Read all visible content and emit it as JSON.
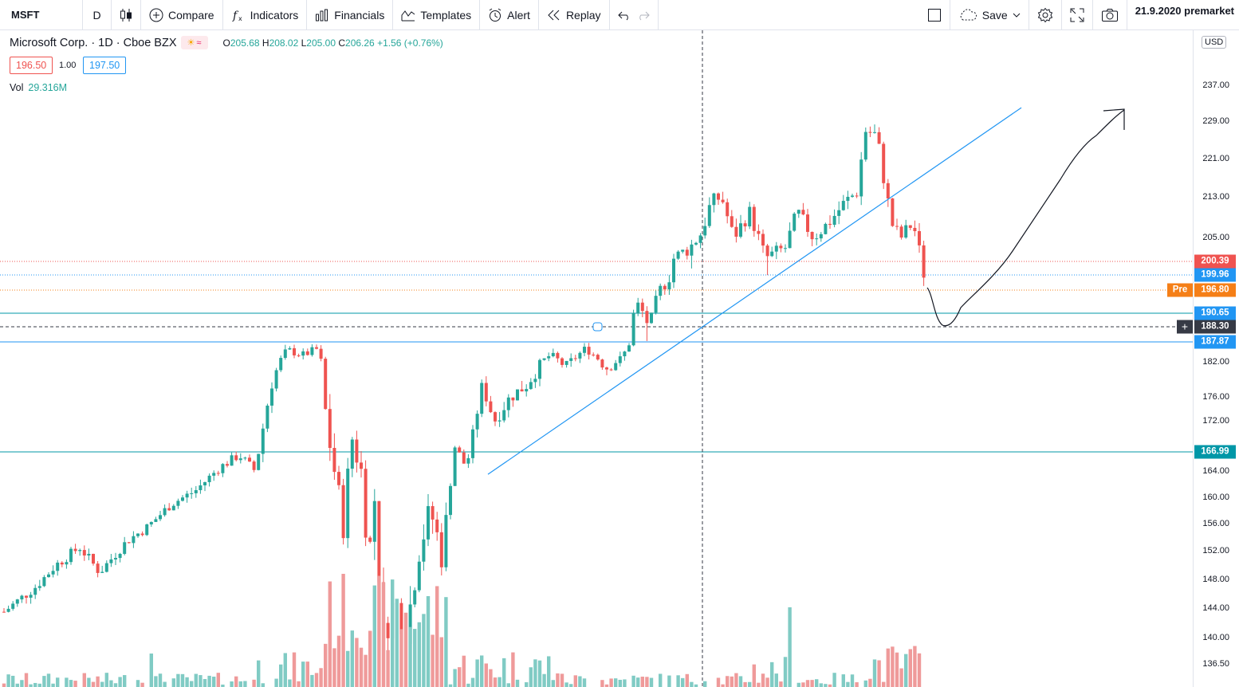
{
  "toolbar": {
    "symbol": "MSFT",
    "interval": "D",
    "compare": "Compare",
    "indicators": "Indicators",
    "financials": "Financials",
    "templates": "Templates",
    "alert": "Alert",
    "replay": "Replay",
    "save": "Save",
    "premarket": "21.9.2020 premarket"
  },
  "legend": {
    "name": "Microsoft Corp. · 1D · Cboe BZX",
    "open": "205.68",
    "high": "208.02",
    "low": "205.00",
    "close": "206.26",
    "change": "+1.56 (+0.76%)",
    "bid": "196.50",
    "spread": "1.00",
    "ask": "197.50",
    "vol_label": "Vol",
    "vol_value": "29.316M"
  },
  "axis": {
    "currency": "USD",
    "ticks": [
      "237.00",
      "229.00",
      "221.00",
      "213.00",
      "205.00",
      "182.00",
      "176.00",
      "172.00",
      "164.00",
      "160.00",
      "156.00",
      "152.00",
      "148.00",
      "144.00",
      "140.00",
      "136.50"
    ],
    "tick_values": [
      237,
      229,
      221,
      213,
      205,
      182,
      176,
      172,
      164,
      160,
      156,
      152,
      148,
      144,
      140,
      136.5
    ]
  },
  "price_labels": [
    {
      "text": "200.39",
      "value": 200.39,
      "color": "#ef5350"
    },
    {
      "text": "199.96",
      "value": 199.96,
      "color": "#2196f3"
    },
    {
      "text": "196.80",
      "value": 196.8,
      "color": "#f57f17"
    },
    {
      "text": "190.65",
      "value": 190.65,
      "color": "#2196f3"
    },
    {
      "text": "188.30",
      "value": 188.3,
      "color": "#363a45"
    },
    {
      "text": "187.87",
      "value": 187.87,
      "color": "#2196f3"
    },
    {
      "text": "166.99",
      "value": 166.99,
      "color": "#0097a7"
    }
  ],
  "pre_label": "Pre",
  "colors": {
    "up": "#26a69a",
    "down": "#ef5350",
    "vol_up": "#80cbc4",
    "vol_down": "#ef9a9a",
    "trend": "#2196f3",
    "hline": "#0097a7"
  }
}
